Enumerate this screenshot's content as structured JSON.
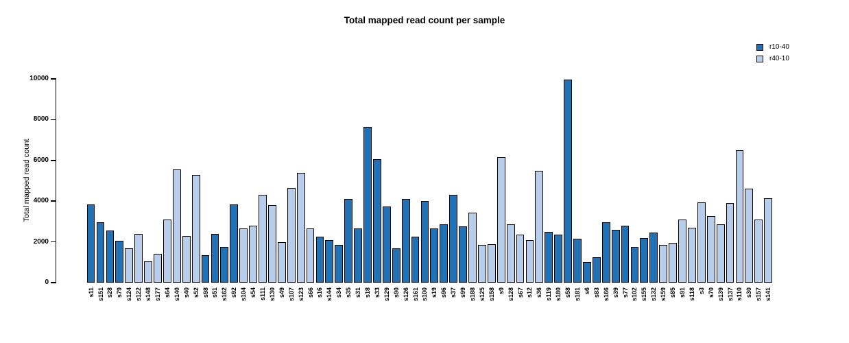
{
  "chart_data": {
    "type": "bar",
    "title": "Total mapped read count per sample",
    "xlabel": "",
    "ylabel": "Total mapped read count",
    "ylim": [
      0,
      10000
    ],
    "yticks": [
      0,
      2000,
      4000,
      6000,
      8000,
      10000
    ],
    "grid": false,
    "legend_position": "top-right",
    "legend": [
      {
        "name": "r10-40",
        "color": "#2171B5"
      },
      {
        "name": "r40-10",
        "color": "#B8CDE9"
      }
    ],
    "bars": [
      {
        "label": "s11",
        "value": 3850,
        "series": "r10-40"
      },
      {
        "label": "s151",
        "value": 2950,
        "series": "r10-40"
      },
      {
        "label": "s28",
        "value": 2550,
        "series": "r10-40"
      },
      {
        "label": "s79",
        "value": 2050,
        "series": "r10-40"
      },
      {
        "label": "s124",
        "value": 1700,
        "series": "r40-10"
      },
      {
        "label": "s122",
        "value": 2400,
        "series": "r40-10"
      },
      {
        "label": "s148",
        "value": 1050,
        "series": "r40-10"
      },
      {
        "label": "s177",
        "value": 1400,
        "series": "r40-10"
      },
      {
        "label": "s64",
        "value": 3100,
        "series": "r40-10"
      },
      {
        "label": "s140",
        "value": 5550,
        "series": "r40-10"
      },
      {
        "label": "s40",
        "value": 2300,
        "series": "r40-10"
      },
      {
        "label": "s52",
        "value": 5300,
        "series": "r40-10"
      },
      {
        "label": "s98",
        "value": 1350,
        "series": "r10-40"
      },
      {
        "label": "s51",
        "value": 2400,
        "series": "r10-40"
      },
      {
        "label": "s162",
        "value": 1750,
        "series": "r10-40"
      },
      {
        "label": "s92",
        "value": 3850,
        "series": "r10-40"
      },
      {
        "label": "s104",
        "value": 2650,
        "series": "r40-10"
      },
      {
        "label": "s54",
        "value": 2800,
        "series": "r40-10"
      },
      {
        "label": "s111",
        "value": 4300,
        "series": "r40-10"
      },
      {
        "label": "s130",
        "value": 3800,
        "series": "r40-10"
      },
      {
        "label": "s49",
        "value": 2000,
        "series": "r40-10"
      },
      {
        "label": "s107",
        "value": 4650,
        "series": "r40-10"
      },
      {
        "label": "s123",
        "value": 5400,
        "series": "r40-10"
      },
      {
        "label": "s66",
        "value": 2650,
        "series": "r40-10"
      },
      {
        "label": "s16",
        "value": 2250,
        "series": "r10-40"
      },
      {
        "label": "s144",
        "value": 2100,
        "series": "r10-40"
      },
      {
        "label": "s34",
        "value": 1850,
        "series": "r10-40"
      },
      {
        "label": "s35",
        "value": 4100,
        "series": "r10-40"
      },
      {
        "label": "s31",
        "value": 2650,
        "series": "r10-40"
      },
      {
        "label": "s18",
        "value": 7650,
        "series": "r10-40"
      },
      {
        "label": "s33",
        "value": 6050,
        "series": "r10-40"
      },
      {
        "label": "s129",
        "value": 3750,
        "series": "r10-40"
      },
      {
        "label": "s90",
        "value": 1700,
        "series": "r10-40"
      },
      {
        "label": "s126",
        "value": 4100,
        "series": "r10-40"
      },
      {
        "label": "s161",
        "value": 2250,
        "series": "r10-40"
      },
      {
        "label": "s100",
        "value": 4000,
        "series": "r10-40"
      },
      {
        "label": "s19",
        "value": 2650,
        "series": "r10-40"
      },
      {
        "label": "s96",
        "value": 2850,
        "series": "r10-40"
      },
      {
        "label": "s37",
        "value": 4300,
        "series": "r10-40"
      },
      {
        "label": "s99",
        "value": 2750,
        "series": "r10-40"
      },
      {
        "label": "s188",
        "value": 3450,
        "series": "r40-10"
      },
      {
        "label": "s125",
        "value": 1850,
        "series": "r40-10"
      },
      {
        "label": "s158",
        "value": 1900,
        "series": "r40-10"
      },
      {
        "label": "s9",
        "value": 6150,
        "series": "r40-10"
      },
      {
        "label": "s128",
        "value": 2850,
        "series": "r40-10"
      },
      {
        "label": "s67",
        "value": 2350,
        "series": "r40-10"
      },
      {
        "label": "s12",
        "value": 2100,
        "series": "r40-10"
      },
      {
        "label": "s36",
        "value": 5500,
        "series": "r40-10"
      },
      {
        "label": "s119",
        "value": 2500,
        "series": "r10-40"
      },
      {
        "label": "s180",
        "value": 2350,
        "series": "r10-40"
      },
      {
        "label": "s58",
        "value": 9950,
        "series": "r10-40"
      },
      {
        "label": "s181",
        "value": 2150,
        "series": "r10-40"
      },
      {
        "label": "s6",
        "value": 1000,
        "series": "r10-40"
      },
      {
        "label": "s83",
        "value": 1250,
        "series": "r10-40"
      },
      {
        "label": "s166",
        "value": 2950,
        "series": "r10-40"
      },
      {
        "label": "s39",
        "value": 2600,
        "series": "r10-40"
      },
      {
        "label": "s77",
        "value": 2800,
        "series": "r10-40"
      },
      {
        "label": "s102",
        "value": 1750,
        "series": "r10-40"
      },
      {
        "label": "s155",
        "value": 2200,
        "series": "r10-40"
      },
      {
        "label": "s132",
        "value": 2450,
        "series": "r10-40"
      },
      {
        "label": "s159",
        "value": 1850,
        "series": "r40-10"
      },
      {
        "label": "s85",
        "value": 1950,
        "series": "r40-10"
      },
      {
        "label": "s91",
        "value": 3100,
        "series": "r40-10"
      },
      {
        "label": "s118",
        "value": 2700,
        "series": "r40-10"
      },
      {
        "label": "s3",
        "value": 3950,
        "series": "r40-10"
      },
      {
        "label": "s70",
        "value": 3250,
        "series": "r40-10"
      },
      {
        "label": "s139",
        "value": 2850,
        "series": "r40-10"
      },
      {
        "label": "s137",
        "value": 3900,
        "series": "r40-10"
      },
      {
        "label": "s110",
        "value": 6500,
        "series": "r40-10"
      },
      {
        "label": "s30",
        "value": 4600,
        "series": "r40-10"
      },
      {
        "label": "s157",
        "value": 3100,
        "series": "r40-10"
      },
      {
        "label": "s141",
        "value": 4150,
        "series": "r40-10"
      }
    ]
  }
}
